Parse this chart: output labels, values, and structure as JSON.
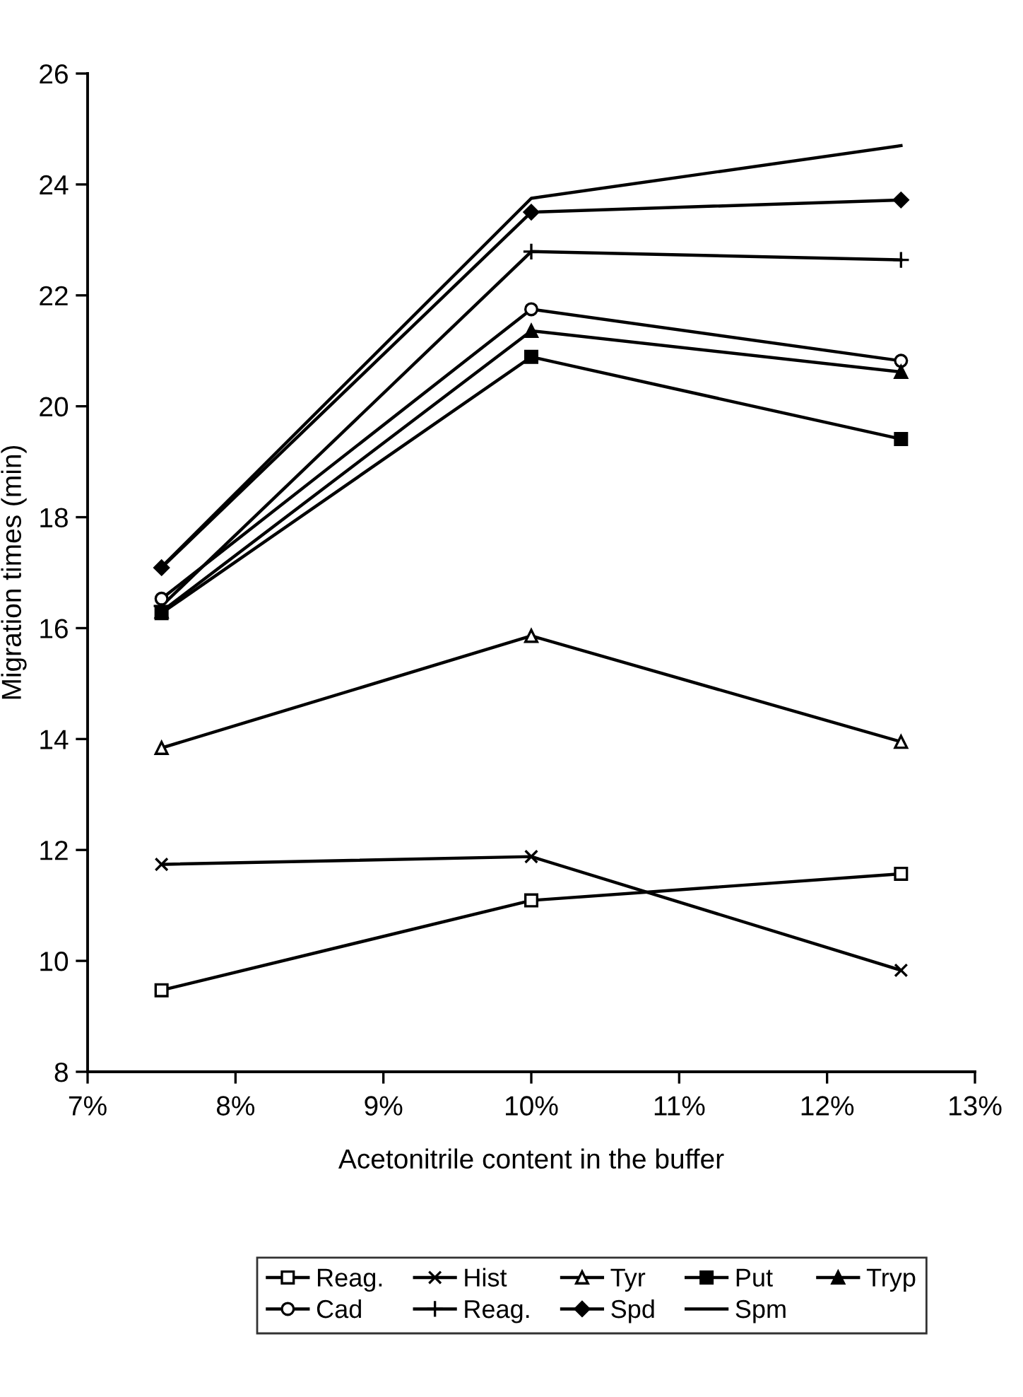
{
  "chart_data": {
    "type": "line",
    "xlabel": "Acetonitrile content in the buffer",
    "ylabel": "Migration times (min)",
    "x": [
      7.5,
      10,
      12.5
    ],
    "xlim": [
      7,
      13
    ],
    "xticks": [
      {
        "value": 7,
        "label": "7%"
      },
      {
        "value": 8,
        "label": "8%"
      },
      {
        "value": 9,
        "label": "9%"
      },
      {
        "value": 10,
        "label": "10%"
      },
      {
        "value": 11,
        "label": "11%"
      },
      {
        "value": 12,
        "label": "12%"
      },
      {
        "value": 13,
        "label": "13%"
      }
    ],
    "ylim": [
      8,
      26
    ],
    "yticks": [
      8,
      10,
      12,
      14,
      16,
      18,
      20,
      22,
      24,
      26
    ],
    "grid": false,
    "legend": "bottom",
    "line_style": "solid",
    "series": [
      {
        "name": "Reag.",
        "color": "#000000",
        "marker": "square-open",
        "values": [
          9.47,
          11.09,
          11.57
        ]
      },
      {
        "name": "Hist",
        "color": "#000000",
        "marker": "cross",
        "values": [
          11.74,
          11.88,
          9.83
        ]
      },
      {
        "name": "Tyr",
        "color": "#000000",
        "marker": "triangle-open",
        "values": [
          13.84,
          15.86,
          13.95
        ]
      },
      {
        "name": "Put",
        "color": "#000000",
        "marker": "square",
        "values": [
          16.27,
          20.89,
          19.41
        ]
      },
      {
        "name": "Tryp",
        "color": "#000000",
        "marker": "triangle",
        "values": [
          16.3,
          21.36,
          20.62
        ]
      },
      {
        "name": "Cad",
        "color": "#000000",
        "marker": "circle-open",
        "values": [
          16.53,
          21.75,
          20.82
        ]
      },
      {
        "name": "Reag.",
        "color": "#000000",
        "marker": "plus",
        "values": [
          16.4,
          22.79,
          22.64
        ]
      },
      {
        "name": "Spd",
        "color": "#000000",
        "marker": "diamond",
        "values": [
          17.09,
          23.5,
          23.72
        ]
      },
      {
        "name": "Spm",
        "color": "#000000",
        "marker": "none",
        "values": [
          17.1,
          23.75,
          24.7
        ]
      }
    ]
  }
}
